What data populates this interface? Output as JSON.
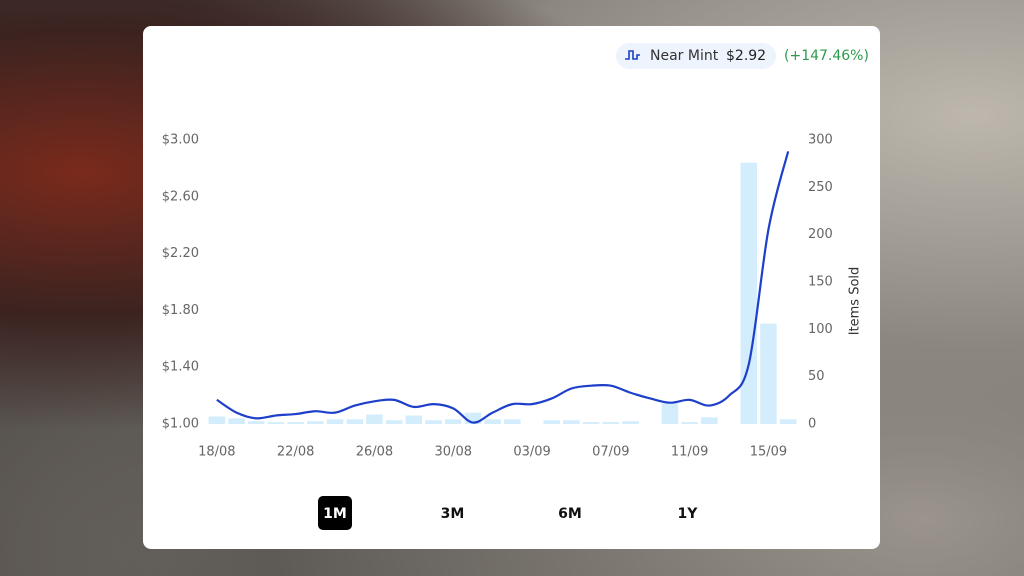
{
  "chart_data": {
    "type": "combo",
    "categories": [
      "18/08",
      null,
      null,
      null,
      "22/08",
      null,
      null,
      null,
      "26/08",
      null,
      null,
      null,
      "30/08",
      null,
      null,
      null,
      "03/09",
      null,
      null,
      null,
      "07/09",
      null,
      null,
      null,
      "11/09",
      null,
      null,
      null,
      "15/09",
      null
    ],
    "series": [
      {
        "name": "Near Mint",
        "type": "line",
        "color": "#1d3fc9",
        "values": [
          1.17,
          1.08,
          1.04,
          1.06,
          1.07,
          1.09,
          1.08,
          1.13,
          1.16,
          1.17,
          1.12,
          1.14,
          1.11,
          1.01,
          1.08,
          1.14,
          1.14,
          1.18,
          1.25,
          1.27,
          1.27,
          1.22,
          1.18,
          1.15,
          1.17,
          1.13,
          1.2,
          1.42,
          2.37,
          2.92
        ]
      },
      {
        "type": "bar",
        "axis": "y2",
        "color": "#d4edfc",
        "values": [
          8,
          6,
          3,
          2,
          2,
          3,
          5,
          5,
          10,
          4,
          9,
          4,
          5,
          12,
          5,
          5,
          0,
          4,
          4,
          2,
          2,
          3,
          0,
          22,
          2,
          7,
          0,
          276,
          106,
          5
        ]
      }
    ],
    "ylim": [
      1,
      3
    ],
    "yticks": [
      {
        "value": 1,
        "label": "$1.00"
      },
      {
        "value": 1.4,
        "label": "$1.40"
      },
      {
        "value": 1.8,
        "label": "$1.80"
      },
      {
        "value": 2.2,
        "label": "$2.20"
      },
      {
        "value": 2.6,
        "label": "$2.60"
      },
      {
        "value": 3,
        "label": "$3.00"
      }
    ],
    "y2lim": [
      0,
      300
    ],
    "y2ticks": [
      0,
      50,
      100,
      150,
      200,
      250,
      300
    ],
    "y2label": "Items Sold",
    "grid": false,
    "legend_price": "$2.92",
    "legend_change": "(+147.46%)"
  },
  "controls": {
    "ranges": [
      "1M",
      "3M",
      "6M",
      "1Y"
    ],
    "selected": 0
  }
}
